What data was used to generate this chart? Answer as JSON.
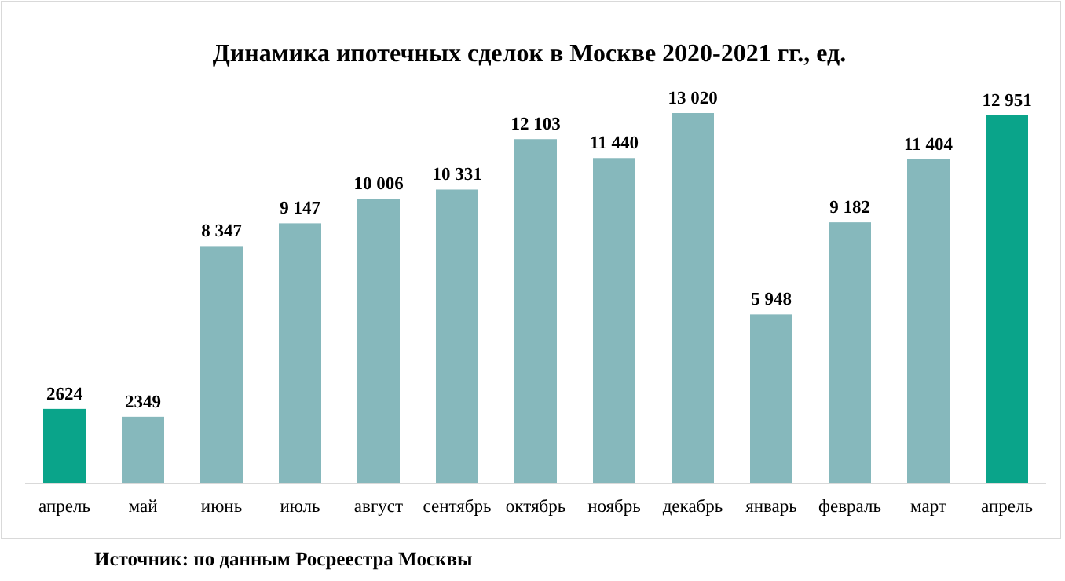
{
  "chart_data": {
    "type": "bar",
    "title": "Динамика ипотечных сделок в Москве 2020-2021 гг., ед.",
    "categories": [
      "апрель",
      "май",
      "июнь",
      "июль",
      "август",
      "сентябрь",
      "октябрь",
      "ноябрь",
      "декабрь",
      "январь",
      "февраль",
      "март",
      "апрель"
    ],
    "values": [
      2624,
      2349,
      8347,
      9147,
      10006,
      10331,
      12103,
      11440,
      13020,
      5948,
      9182,
      11404,
      12951
    ],
    "value_labels": [
      "2624",
      "2349",
      "8 347",
      "9 147",
      "10 006",
      "10 331",
      "12 103",
      "11 440",
      "13 020",
      "5 948",
      "9 182",
      "11 404",
      "12 951"
    ],
    "colors": [
      "#0aa48a",
      "#86b8bc",
      "#86b8bc",
      "#86b8bc",
      "#86b8bc",
      "#86b8bc",
      "#86b8bc",
      "#86b8bc",
      "#86b8bc",
      "#86b8bc",
      "#86b8bc",
      "#86b8bc",
      "#0aa48a"
    ],
    "annotations": [
      "Источник: по данным Росреестра Москвы"
    ]
  }
}
